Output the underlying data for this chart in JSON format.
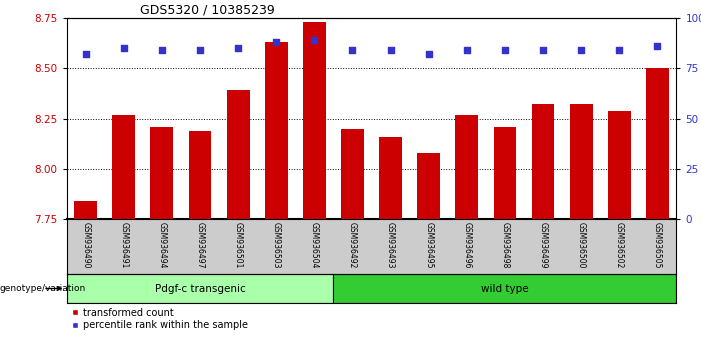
{
  "title": "GDS5320 / 10385239",
  "categories": [
    "GSM936490",
    "GSM936491",
    "GSM936494",
    "GSM936497",
    "GSM936501",
    "GSM936503",
    "GSM936504",
    "GSM936492",
    "GSM936493",
    "GSM936495",
    "GSM936496",
    "GSM936498",
    "GSM936499",
    "GSM936500",
    "GSM936502",
    "GSM936505"
  ],
  "bar_values": [
    7.84,
    8.27,
    8.21,
    8.19,
    8.39,
    8.63,
    8.73,
    8.2,
    8.16,
    8.08,
    8.27,
    8.21,
    8.32,
    8.32,
    8.29,
    8.5
  ],
  "percentile_values": [
    82,
    85,
    84,
    84,
    85,
    88,
    89,
    84,
    84,
    82,
    84,
    84,
    84,
    84,
    84,
    86
  ],
  "bar_color": "#cc0000",
  "percentile_color": "#3333cc",
  "ylim_left": [
    7.75,
    8.75
  ],
  "ylim_right": [
    0,
    100
  ],
  "yticks_left": [
    7.75,
    8.0,
    8.25,
    8.5,
    8.75
  ],
  "yticks_right": [
    0,
    25,
    50,
    75,
    100
  ],
  "ytick_labels_right": [
    "0",
    "25",
    "50",
    "75",
    "100%"
  ],
  "grid_lines": [
    8.0,
    8.25,
    8.5
  ],
  "group1_label": "Pdgf-c transgenic",
  "group2_label": "wild type",
  "group1_color": "#aaffaa",
  "group2_color": "#33cc33",
  "group_label_prefix": "genotype/variation",
  "legend_items": [
    "transformed count",
    "percentile rank within the sample"
  ],
  "legend_colors": [
    "#cc0000",
    "#3333cc"
  ],
  "bar_width": 0.6,
  "group1_count": 7,
  "group2_count": 9,
  "tick_area_color": "#cccccc"
}
